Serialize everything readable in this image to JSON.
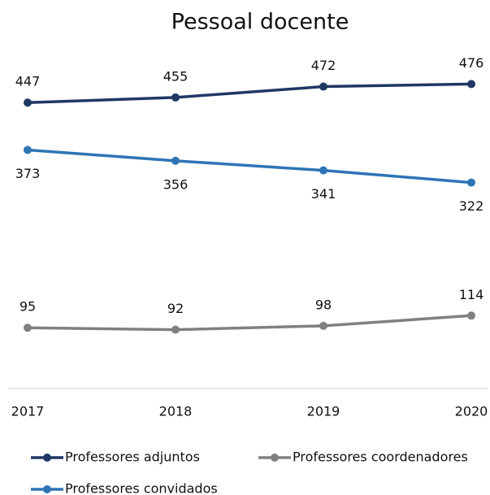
{
  "chart_data": {
    "type": "line",
    "title": "Pessoal docente",
    "categories": [
      "2017",
      "2018",
      "2019",
      "2020"
    ],
    "series": [
      {
        "name": "Professores adjuntos",
        "color": "#1f3864",
        "values": [
          447,
          455,
          472,
          476
        ]
      },
      {
        "name": "Professores convidados",
        "color": "#2e75b6",
        "values": [
          373,
          356,
          341,
          322
        ]
      },
      {
        "name": "Professores coordenadores",
        "color": "#808080",
        "values": [
          95,
          92,
          98,
          114
        ]
      }
    ],
    "ylim": [
      0,
      500
    ],
    "grid": false,
    "legend": "bottom"
  }
}
